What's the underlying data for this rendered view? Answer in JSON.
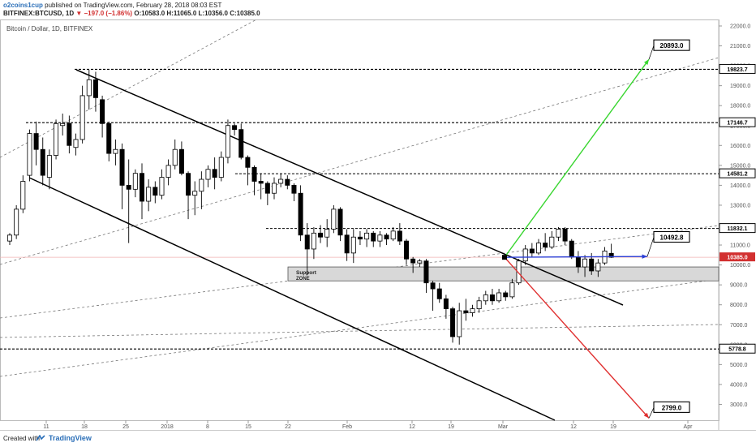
{
  "header": {
    "user": "o2coins1cup",
    "published": "published on TradingView.com, February 28, 2018 08:03 EST",
    "symbol": "BITFINEX:BTCUSD, 1D",
    "change": "▼ −197.0 (−1.86%)",
    "ohlc": "O:10583.0  H:11065.0  L:10356.0  C:10385.0"
  },
  "footer": {
    "created": "Created with",
    "brand": "TradingView"
  },
  "colors": {
    "up": "#ffffff",
    "down": "#000000",
    "last": "#d23030",
    "green": "#39d630",
    "red": "#e03030",
    "blue": "#2c3fd6",
    "zone": "#d8d8d8"
  },
  "chart_data": {
    "type": "candlestick",
    "title": "Bitcoin / Dollar, 1D, BITFINEX",
    "y_ticks": [
      "22000.0",
      "21000.0",
      "20000.0",
      "19000.0",
      "18000.0",
      "17000.0",
      "16000.0",
      "15000.0",
      "14000.0",
      "13000.0",
      "12000.0",
      "11000.0",
      "10000.0",
      "9000.0",
      "8000.0",
      "7000.0",
      "6000.0",
      "5000.0",
      "4000.0",
      "3000.0"
    ],
    "x_ticks": [
      "11",
      "18",
      "25",
      "2018",
      "8",
      "15",
      "22",
      "Feb",
      "12",
      "19",
      "Mar",
      "12",
      "19",
      "Apr"
    ],
    "last_price": "10385.0",
    "levels": [
      {
        "label": "19823.7",
        "value": 19823.7
      },
      {
        "label": "17146.7",
        "value": 17146.7
      },
      {
        "label": "14581.2",
        "value": 14581.2
      },
      {
        "label": "11832.1",
        "value": 11832.1
      },
      {
        "label": "5778.8",
        "value": 5778.8
      }
    ],
    "support_zone": {
      "label_top": "Support",
      "label_bottom": "ZONE",
      "low": 9200,
      "high": 9900
    },
    "projections": [
      {
        "label": "20893.0",
        "value": 20893.0,
        "color": "green"
      },
      {
        "label": "10492.8",
        "value": 10492.8,
        "color": "blue"
      },
      {
        "label": "2799.0",
        "value": 2799.0,
        "color": "red"
      }
    ],
    "candles": [
      [
        11200,
        11600,
        11000,
        11500
      ],
      [
        11500,
        13000,
        11300,
        12800
      ],
      [
        12800,
        14500,
        12600,
        14200
      ],
      [
        14500,
        16800,
        14200,
        16600
      ],
      [
        16600,
        17200,
        15000,
        15800
      ],
      [
        15800,
        16400,
        14000,
        14500
      ],
      [
        14400,
        15800,
        13800,
        15500
      ],
      [
        15500,
        17300,
        15300,
        17100
      ],
      [
        17000,
        17600,
        16500,
        17100
      ],
      [
        17100,
        17500,
        15600,
        16000
      ],
      [
        15900,
        16600,
        15500,
        16300
      ],
      [
        16300,
        19000,
        16100,
        18500
      ],
      [
        18500,
        19800,
        17800,
        19300
      ],
      [
        19300,
        19700,
        17700,
        18400
      ],
      [
        18300,
        18500,
        16400,
        17100
      ],
      [
        17100,
        17200,
        15200,
        15600
      ],
      [
        15600,
        16300,
        15000,
        15800
      ],
      [
        15800,
        16100,
        12800,
        14000
      ],
      [
        14000,
        15300,
        11100,
        13800
      ],
      [
        13800,
        14800,
        13400,
        14600
      ],
      [
        14600,
        15100,
        12300,
        13200
      ],
      [
        13200,
        14300,
        12700,
        13900
      ],
      [
        13900,
        14200,
        13100,
        13500
      ],
      [
        13500,
        14800,
        13300,
        14400
      ],
      [
        14400,
        15300,
        14000,
        15000
      ],
      [
        15000,
        16300,
        14800,
        15800
      ],
      [
        15800,
        16200,
        14500,
        14600
      ],
      [
        14600,
        14700,
        12300,
        13500
      ],
      [
        13500,
        14200,
        12500,
        13700
      ],
      [
        13700,
        14700,
        12800,
        14300
      ],
      [
        14300,
        15000,
        13900,
        14800
      ],
      [
        14800,
        15400,
        13800,
        14400
      ],
      [
        14400,
        15700,
        14200,
        15400
      ],
      [
        15400,
        17300,
        15100,
        17000
      ],
      [
        17000,
        17100,
        16500,
        16800
      ],
      [
        16800,
        17100,
        15300,
        15400
      ],
      [
        15400,
        15500,
        14000,
        14900
      ],
      [
        14900,
        15000,
        13500,
        14200
      ],
      [
        14200,
        14600,
        13300,
        14100
      ],
      [
        14100,
        14200,
        13000,
        13600
      ],
      [
        13600,
        14400,
        13300,
        14100
      ],
      [
        14100,
        14600,
        13900,
        14300
      ],
      [
        14300,
        14500,
        13800,
        14000
      ],
      [
        14000,
        14100,
        13200,
        13600
      ],
      [
        13600,
        14000,
        11200,
        11500
      ],
      [
        11500,
        12100,
        9500,
        10800
      ],
      [
        10800,
        11900,
        10300,
        11600
      ],
      [
        11600,
        12000,
        11100,
        11400
      ],
      [
        11400,
        12300,
        10900,
        11800
      ],
      [
        11800,
        13000,
        11600,
        12800
      ],
      [
        12800,
        12900,
        11200,
        11500
      ],
      [
        11500,
        11800,
        10200,
        10600
      ],
      [
        10600,
        11800,
        10100,
        11400
      ],
      [
        11400,
        11700,
        11000,
        11300
      ],
      [
        11300,
        11800,
        10900,
        11600
      ],
      [
        11600,
        11700,
        10900,
        11200
      ],
      [
        11200,
        11700,
        10900,
        11500
      ],
      [
        11500,
        11600,
        11000,
        11300
      ],
      [
        11300,
        11900,
        11200,
        11700
      ],
      [
        11700,
        12100,
        11000,
        11200
      ],
      [
        11200,
        11300,
        10000,
        10300
      ],
      [
        10300,
        10400,
        9600,
        10100
      ],
      [
        10100,
        10300,
        9900,
        10200
      ],
      [
        10200,
        10300,
        8600,
        9100
      ],
      [
        9100,
        9200,
        7700,
        8800
      ],
      [
        8800,
        9100,
        8100,
        8300
      ],
      [
        8300,
        8500,
        7300,
        7800
      ],
      [
        7800,
        7900,
        6100,
        6400
      ],
      [
        6400,
        8100,
        6000,
        7700
      ],
      [
        7700,
        8300,
        7200,
        7600
      ],
      [
        7600,
        8000,
        7400,
        7800
      ],
      [
        7800,
        8400,
        7600,
        8200
      ],
      [
        8200,
        8700,
        8000,
        8500
      ],
      [
        8500,
        8800,
        8000,
        8200
      ],
      [
        8200,
        8800,
        8100,
        8600
      ],
      [
        8600,
        8700,
        8200,
        8400
      ],
      [
        8400,
        9300,
        8300,
        9100
      ],
      [
        9100,
        10300,
        9000,
        10200
      ],
      [
        10200,
        11000,
        10000,
        10800
      ],
      [
        10800,
        11100,
        10400,
        10600
      ],
      [
        10600,
        11300,
        10500,
        11100
      ],
      [
        11100,
        11600,
        10700,
        10900
      ],
      [
        10900,
        11700,
        10800,
        11400
      ],
      [
        11400,
        11900,
        11200,
        11800
      ],
      [
        11800,
        11900,
        11000,
        11200
      ],
      [
        11200,
        11300,
        10300,
        10400
      ],
      [
        10400,
        10700,
        9600,
        9900
      ],
      [
        9900,
        10500,
        9400,
        10300
      ],
      [
        10300,
        10600,
        9500,
        9700
      ],
      [
        9700,
        10300,
        9400,
        10100
      ],
      [
        10100,
        10900,
        10000,
        10700
      ],
      [
        10583,
        11065,
        10356,
        10385
      ]
    ]
  }
}
